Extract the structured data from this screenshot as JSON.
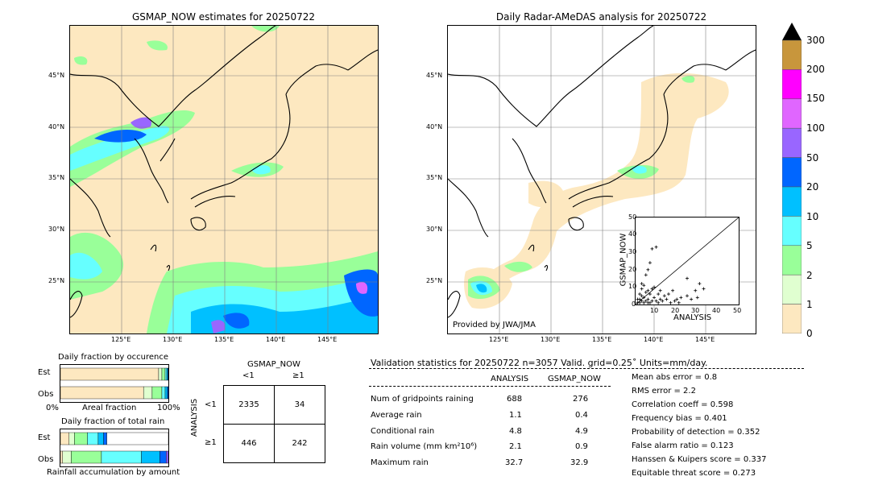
{
  "left_map": {
    "title": "GSMAP_NOW estimates for 20250722",
    "lat_labels": [
      "45°N",
      "40°N",
      "35°N",
      "30°N",
      "25°N"
    ],
    "lon_labels": [
      "125°E",
      "130°E",
      "135°E",
      "140°E",
      "145°E"
    ]
  },
  "right_map": {
    "title": "Daily Radar-AMeDAS analysis for 20250722",
    "lat_labels": [
      "45°N",
      "40°N",
      "35°N",
      "30°N",
      "25°N"
    ],
    "lon_labels": [
      "125°E",
      "130°E",
      "135°E",
      "140°E",
      "145°E"
    ],
    "credit": "Provided by JWA/JMA"
  },
  "colorbar": {
    "ticks": [
      "300",
      "200",
      "150",
      "100",
      "50",
      "20",
      "10",
      "5",
      "2",
      "1",
      "0"
    ],
    "colors": [
      "#c8963c",
      "#ff00ff",
      "#e066ff",
      "#9966ff",
      "#0066ff",
      "#00c0ff",
      "#66ffff",
      "#99ff99",
      "#e0ffd0",
      "#fde8c0"
    ],
    "top_color": "#000000"
  },
  "scatter": {
    "xlabel": "ANALYSIS",
    "ylabel": "GSMAP_NOW",
    "ticks": [
      "0",
      "10",
      "20",
      "30",
      "40",
      "50"
    ]
  },
  "fraction_occurrence": {
    "title": "Daily fraction by occurence",
    "rows": [
      "Est",
      "Obs"
    ],
    "axis_left": "0%",
    "axis_mid": "Areal fraction",
    "axis_right": "100%"
  },
  "fraction_rain": {
    "title": "Daily fraction of total rain",
    "rows": [
      "Est",
      "Obs"
    ],
    "footer": "Rainfall accumulation by amount"
  },
  "contingency": {
    "col_header": "GSMAP_NOW",
    "col_labels": [
      "<1",
      "≥1"
    ],
    "row_header": "ANALYSIS",
    "row_labels": [
      "<1",
      "≥1"
    ],
    "cells": [
      [
        "2335",
        "34"
      ],
      [
        "446",
        "242"
      ]
    ]
  },
  "validation": {
    "header": "Validation statistics for 20250722  n=3057 Valid. grid=0.25˚ Units=mm/day.",
    "col_analysis": "ANALYSIS",
    "col_gsmap": "GSMAP_NOW",
    "rows": [
      {
        "label": "Num of gridpoints raining",
        "analysis": "688",
        "gsmap": "276"
      },
      {
        "label": "Average rain",
        "analysis": "1.1",
        "gsmap": "0.4"
      },
      {
        "label": "Conditional rain",
        "analysis": "4.8",
        "gsmap": "4.9"
      },
      {
        "label": "Rain volume (mm km²10⁶)",
        "analysis": "2.1",
        "gsmap": "0.9"
      },
      {
        "label": "Maximum rain",
        "analysis": "32.7",
        "gsmap": "32.9"
      }
    ],
    "scores": [
      "Mean abs error =    0.8",
      "RMS error =    2.2",
      "Correlation coeff =  0.598",
      "Frequency bias =  0.401",
      "Probability of detection =  0.352",
      "False alarm ratio =  0.123",
      "Hanssen & Kuipers score =  0.337",
      "Equitable threat score =  0.273"
    ]
  },
  "chart_data": [
    {
      "type": "scatter",
      "title": "",
      "xlabel": "ANALYSIS",
      "ylabel": "GSMAP_NOW",
      "xlim": [
        0,
        50
      ],
      "ylim": [
        0,
        50
      ],
      "diagonal": true,
      "points": [
        [
          1,
          1
        ],
        [
          2,
          1
        ],
        [
          2,
          3
        ],
        [
          3,
          2
        ],
        [
          4,
          1
        ],
        [
          5,
          2
        ],
        [
          3,
          5
        ],
        [
          6,
          3
        ],
        [
          7,
          1
        ],
        [
          8,
          2
        ],
        [
          4,
          4
        ],
        [
          9,
          4
        ],
        [
          10,
          2
        ],
        [
          5,
          7
        ],
        [
          6,
          8
        ],
        [
          11,
          1
        ],
        [
          12,
          3
        ],
        [
          13,
          2
        ],
        [
          7,
          6
        ],
        [
          8,
          9
        ],
        [
          14,
          5
        ],
        [
          15,
          3
        ],
        [
          3,
          9
        ],
        [
          4,
          11
        ],
        [
          2,
          6
        ],
        [
          1,
          3
        ],
        [
          16,
          6
        ],
        [
          18,
          8
        ],
        [
          20,
          3
        ],
        [
          22,
          4
        ],
        [
          5,
          17
        ],
        [
          6,
          20
        ],
        [
          7,
          24
        ],
        [
          8,
          32
        ],
        [
          10,
          33
        ],
        [
          3,
          12
        ],
        [
          9,
          10
        ],
        [
          11,
          6
        ],
        [
          12,
          8
        ],
        [
          25,
          5
        ],
        [
          27,
          3
        ],
        [
          29,
          8
        ],
        [
          31,
          12
        ],
        [
          33,
          9
        ],
        [
          25,
          15
        ],
        [
          30,
          4
        ],
        [
          17,
          1
        ],
        [
          19,
          2
        ],
        [
          21,
          1
        ],
        [
          6,
          1
        ]
      ]
    },
    {
      "type": "bar",
      "title": "Daily fraction by occurence",
      "categories": [
        "Est",
        "Obs"
      ],
      "xlabel": "Areal fraction",
      "stacked_fractions": [
        {
          "row": "Est",
          "segments": [
            {
              "color": "#fde8c0",
              "value": 0.91
            },
            {
              "color": "#e0ffd0",
              "value": 0.03
            },
            {
              "color": "#99ff99",
              "value": 0.03
            },
            {
              "color": "#66ffff",
              "value": 0.015
            },
            {
              "color": "#00c0ff",
              "value": 0.01
            },
            {
              "color": "#0066ff",
              "value": 0.005
            }
          ]
        },
        {
          "row": "Obs",
          "segments": [
            {
              "color": "#fde8c0",
              "value": 0.77
            },
            {
              "color": "#e0ffd0",
              "value": 0.08
            },
            {
              "color": "#99ff99",
              "value": 0.09
            },
            {
              "color": "#66ffff",
              "value": 0.03
            },
            {
              "color": "#00c0ff",
              "value": 0.02
            },
            {
              "color": "#0066ff",
              "value": 0.01
            }
          ]
        }
      ]
    },
    {
      "type": "bar",
      "title": "Daily fraction of total rain",
      "categories": [
        "Est",
        "Obs"
      ],
      "stacked_fractions": [
        {
          "row": "Est",
          "segments": [
            {
              "color": "#fde8c0",
              "value": 0.08
            },
            {
              "color": "#e0ffd0",
              "value": 0.05
            },
            {
              "color": "#99ff99",
              "value": 0.12
            },
            {
              "color": "#66ffff",
              "value": 0.1
            },
            {
              "color": "#00c0ff",
              "value": 0.05
            },
            {
              "color": "#0066ff",
              "value": 0.03
            },
            {
              "color": "#ffffff",
              "value": 0.57
            }
          ]
        },
        {
          "row": "Obs",
          "segments": [
            {
              "color": "#fde8c0",
              "value": 0.02
            },
            {
              "color": "#e0ffd0",
              "value": 0.08
            },
            {
              "color": "#99ff99",
              "value": 0.28
            },
            {
              "color": "#66ffff",
              "value": 0.37
            },
            {
              "color": "#00c0ff",
              "value": 0.17
            },
            {
              "color": "#0066ff",
              "value": 0.06
            },
            {
              "color": "#9966ff",
              "value": 0.02
            }
          ]
        }
      ]
    }
  ]
}
